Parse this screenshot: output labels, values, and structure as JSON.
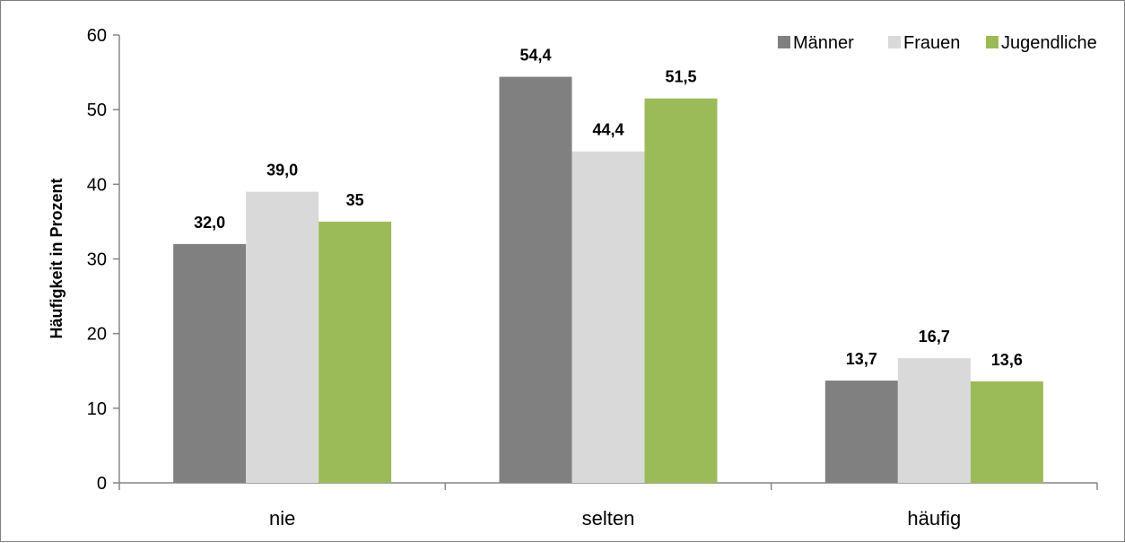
{
  "chart_data": {
    "type": "bar",
    "title": "",
    "xlabel": "",
    "ylabel": "Häufigkeit in Prozent",
    "categories": [
      "nie",
      "selten",
      "häufig"
    ],
    "series": [
      {
        "name": "Männer",
        "color": "#808080",
        "values": [
          32.0,
          54.4,
          13.7
        ],
        "labels": [
          "32,0",
          "54,4",
          "13,7"
        ]
      },
      {
        "name": "Frauen",
        "color": "#d9d9d9",
        "values": [
          39.0,
          44.4,
          16.7
        ],
        "labels": [
          "39,0",
          "44,4",
          "16,7"
        ]
      },
      {
        "name": "Jugendliche",
        "color": "#9bbb59",
        "values": [
          35,
          51.5,
          13.6
        ],
        "labels": [
          "35",
          "51,5",
          "13,6"
        ]
      }
    ],
    "ylim": [
      0,
      60
    ],
    "yticks": [
      "0",
      "10",
      "20",
      "30",
      "40",
      "50",
      "60"
    ],
    "grid": false,
    "legend_position": "top-right"
  }
}
